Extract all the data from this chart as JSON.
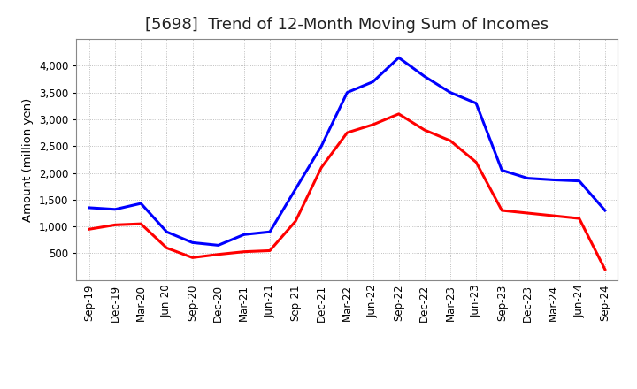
{
  "title": "[5698]  Trend of 12-Month Moving Sum of Incomes",
  "ylabel": "Amount (million yen)",
  "x_labels": [
    "Sep-19",
    "Dec-19",
    "Mar-20",
    "Jun-20",
    "Sep-20",
    "Dec-20",
    "Mar-21",
    "Jun-21",
    "Sep-21",
    "Dec-21",
    "Mar-22",
    "Jun-22",
    "Sep-22",
    "Dec-22",
    "Mar-23",
    "Jun-23",
    "Sep-23",
    "Dec-23",
    "Mar-24",
    "Jun-24",
    "Sep-24"
  ],
  "ordinary_income": [
    1350,
    1320,
    1430,
    900,
    700,
    650,
    850,
    900,
    1700,
    2500,
    3500,
    3700,
    4150,
    3800,
    3500,
    3300,
    2050,
    1900,
    1870,
    1850,
    1300
  ],
  "net_income": [
    950,
    1030,
    1050,
    600,
    420,
    480,
    530,
    550,
    1100,
    2100,
    2750,
    2900,
    3100,
    2800,
    2600,
    2200,
    1300,
    1250,
    1200,
    1150,
    200
  ],
  "ordinary_color": "#0000FF",
  "net_color": "#FF0000",
  "ylim_min": 0,
  "ylim_max": 4500,
  "yticks": [
    500,
    1000,
    1500,
    2000,
    2500,
    3000,
    3500,
    4000
  ],
  "background_color": "#FFFFFF",
  "plot_bg_color": "#FFFFFF",
  "grid_color": "#999999",
  "title_fontsize": 13,
  "axis_label_fontsize": 9.5,
  "tick_fontsize": 8.5,
  "legend_fontsize": 10,
  "line_width": 2.2
}
